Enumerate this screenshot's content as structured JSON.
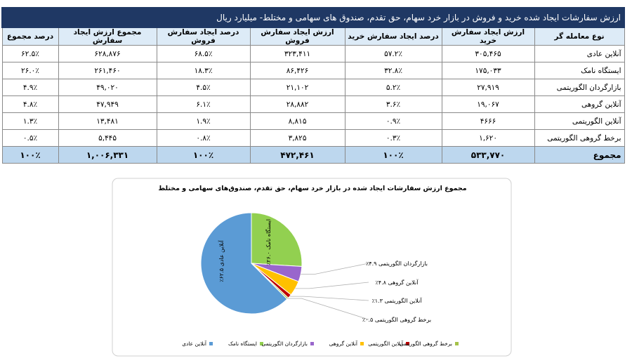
{
  "table": {
    "title": "ارزش سفارشات ایجاد شده خرید و فروش در بازار خرد سهام، حق تقدم، صندوق های سهامی و مختلط- میلیارد ریال",
    "headers": [
      "نوع معامله گر",
      "ارزش ایجاد سفارش خرید",
      "درصد ایجاد سفارش خرید",
      "ارزش ایجاد سفارش فروش",
      "درصد ایجاد سفارش فروش",
      "مجموع ارزش ایجاد سفارش",
      "درصد مجموع"
    ],
    "rows": [
      [
        "آنلاین عادی",
        "۳۰۵,۴۶۵",
        "۵۷.۲٪",
        "۳۲۳,۴۱۱",
        "۶۸.۵٪",
        "۶۲۸,۸۷۶",
        "۶۲.۵٪"
      ],
      [
        "ایستگاه نامک",
        "۱۷۵,۰۳۳",
        "۳۲.۸٪",
        "۸۶,۴۲۶",
        "۱۸.۳٪",
        "۲۶۱,۴۶۰",
        "۲۶.۰٪"
      ],
      [
        "بازارگردان الگوریتمی",
        "۲۷,۹۱۹",
        "۵.۲٪",
        "۲۱,۱۰۲",
        "۴.۵٪",
        "۴۹,۰۲۰",
        "۴.۹٪"
      ],
      [
        "آنلاین گروهی",
        "۱۹,۰۶۷",
        "۳.۶٪",
        "۲۸,۸۸۲",
        "۶.۱٪",
        "۴۷,۹۴۹",
        "۴.۸٪"
      ],
      [
        "آنلاین الگوریتمی",
        "۴۶۶۶",
        "۰.۹٪",
        "۸,۸۱۵",
        "۱.۹٪",
        "۱۳,۴۸۱",
        "۱.۳٪"
      ],
      [
        "برخط گروهی الگوریتمی",
        "۱,۶۲۰",
        "۰.۳٪",
        "۳,۸۲۵",
        "۰.۸٪",
        "۵,۴۴۵",
        "۰.۵٪"
      ]
    ],
    "total": [
      "مجموع",
      "۵۳۳,۷۷۰",
      "۱۰۰٪",
      "۴۷۲,۴۶۱",
      "۱۰۰٪",
      "۱,۰۰۶,۳۳۱",
      "۱۰۰٪"
    ]
  },
  "chart_data": {
    "type": "pie",
    "title": "مجموع ارزش سفارشات ایجاد شده در بازار خرد سهام، حق تقدم، صندوق‌های سهامی و مختلط",
    "categories": [
      "آنلاین عادی",
      "ایستگاه نامک",
      "بازارگردان الگوریتمی",
      "آنلاین گروهی",
      "آنلاین الگوریتمی",
      "برخط گروهی الگوریتمی"
    ],
    "values": [
      62.5,
      26.0,
      4.9,
      4.8,
      1.3,
      0.5
    ],
    "value_labels": [
      "۶۲.۵٪",
      "۲۶.۰٪",
      "۴.۹٪",
      "۴.۸٪",
      "۱.۳٪",
      "۰.۵٪"
    ],
    "colors": [
      "#5b9bd5",
      "#92d050",
      "#9966cc",
      "#ffc000",
      "#c00000",
      "#a5c249"
    ]
  }
}
